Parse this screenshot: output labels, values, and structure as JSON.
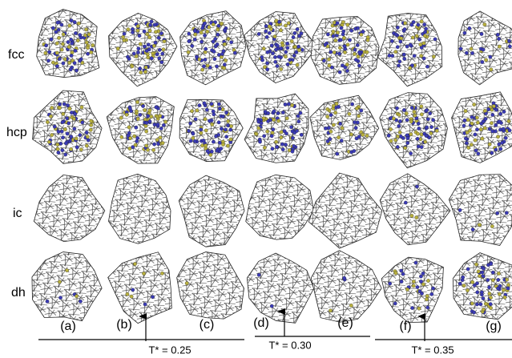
{
  "rows": [
    "fcc",
    "hcp",
    "ic",
    "dh"
  ],
  "panels": [
    "(a)",
    "(b)",
    "(c)",
    "(d)",
    "(e)",
    "(f)",
    "(g)"
  ],
  "temperatures": [
    "T* = 0.25",
    "T* = 0.30",
    "T* = 0.35"
  ]
}
